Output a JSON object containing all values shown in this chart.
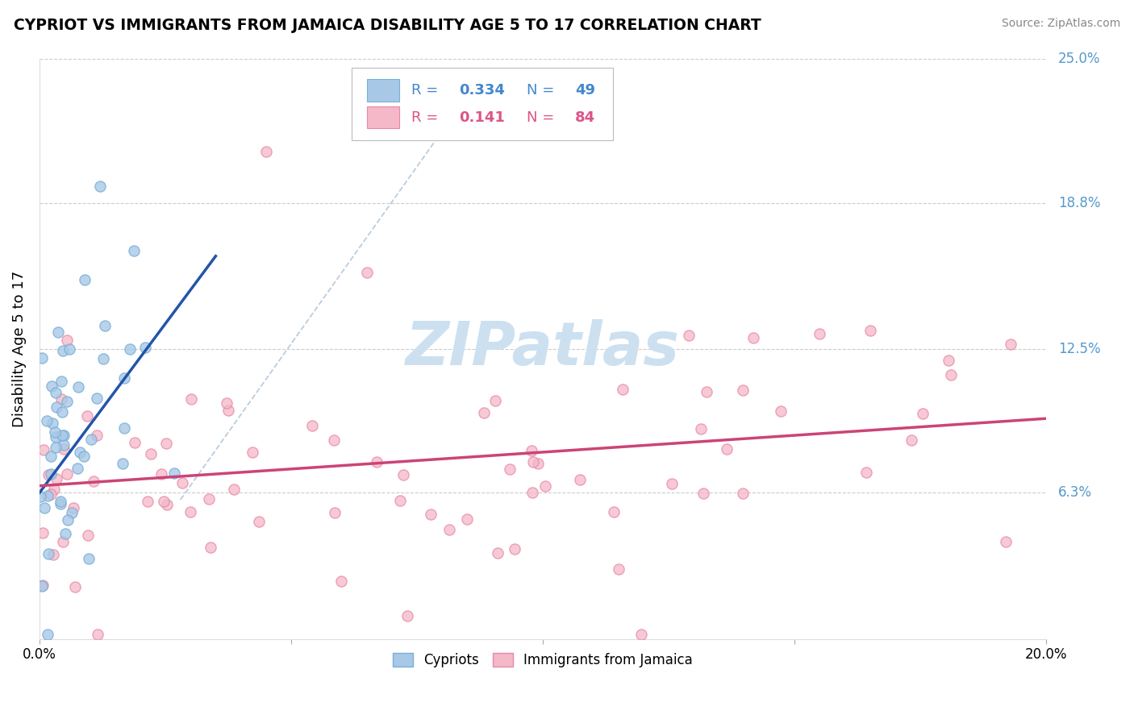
{
  "title": "CYPRIOT VS IMMIGRANTS FROM JAMAICA DISABILITY AGE 5 TO 17 CORRELATION CHART",
  "source": "Source: ZipAtlas.com",
  "ylabel": "Disability Age 5 to 17",
  "xlim": [
    0.0,
    0.2
  ],
  "ylim": [
    0.0,
    0.25
  ],
  "ytick_vals": [
    0.0,
    0.063,
    0.125,
    0.188,
    0.25
  ],
  "ytick_labels": [
    "",
    "6.3%",
    "12.5%",
    "18.8%",
    "25.0%"
  ],
  "xtick_vals": [
    0.0,
    0.05,
    0.1,
    0.15,
    0.2
  ],
  "xtick_labels": [
    "0.0%",
    "",
    "",
    "",
    "20.0%"
  ],
  "series1_color": "#a8c8e8",
  "series1_edge": "#7bafd4",
  "series2_color": "#f4b8c8",
  "series2_edge": "#e888a8",
  "trend1_color": "#2255aa",
  "trend2_color": "#cc4477",
  "diagonal_color": "#bbccdd",
  "watermark_color": "#cce0f0",
  "legend_r1": "0.334",
  "legend_n1": "49",
  "legend_r2": "0.141",
  "legend_n2": "84",
  "legend_text_color1": "#4488cc",
  "legend_text_color2": "#dd5588",
  "ytick_color": "#5599cc"
}
